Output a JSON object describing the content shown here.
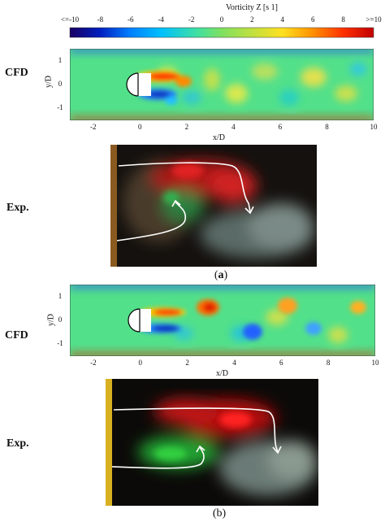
{
  "colorbar": {
    "title": "Vorticity Z [s 1]",
    "ticks": [
      "<=-10",
      "-8",
      "-6",
      "-4",
      "-2",
      "0",
      "2",
      "4",
      "6",
      "8",
      ">=10"
    ],
    "range": [
      -10,
      10
    ],
    "colors": [
      "#1a0060",
      "#0020c0",
      "#0080ff",
      "#00c0ff",
      "#40e0a0",
      "#80e060",
      "#c0e040",
      "#ffe020",
      "#ff9000",
      "#ff3000",
      "#c00000"
    ]
  },
  "panel_a": {
    "cfd_label": "CFD",
    "exp_label": "Exp.",
    "caption_open": "(",
    "caption_letter": "a",
    "caption_close": ")",
    "xlabel": "x/D",
    "ylabel": "y/D",
    "xticks": [
      "-2",
      "0",
      "2",
      "4",
      "6",
      "8",
      "10"
    ],
    "yticks": [
      "1",
      "0",
      "-1"
    ]
  },
  "panel_b": {
    "cfd_label": "CFD",
    "exp_label": "Exp.",
    "caption": "(b)",
    "xlabel": "x/D",
    "ylabel": "y/D",
    "xticks": [
      "-2",
      "0",
      "2",
      "4",
      "6",
      "8",
      "10"
    ],
    "yticks": [
      "1",
      "0",
      "-1"
    ]
  }
}
